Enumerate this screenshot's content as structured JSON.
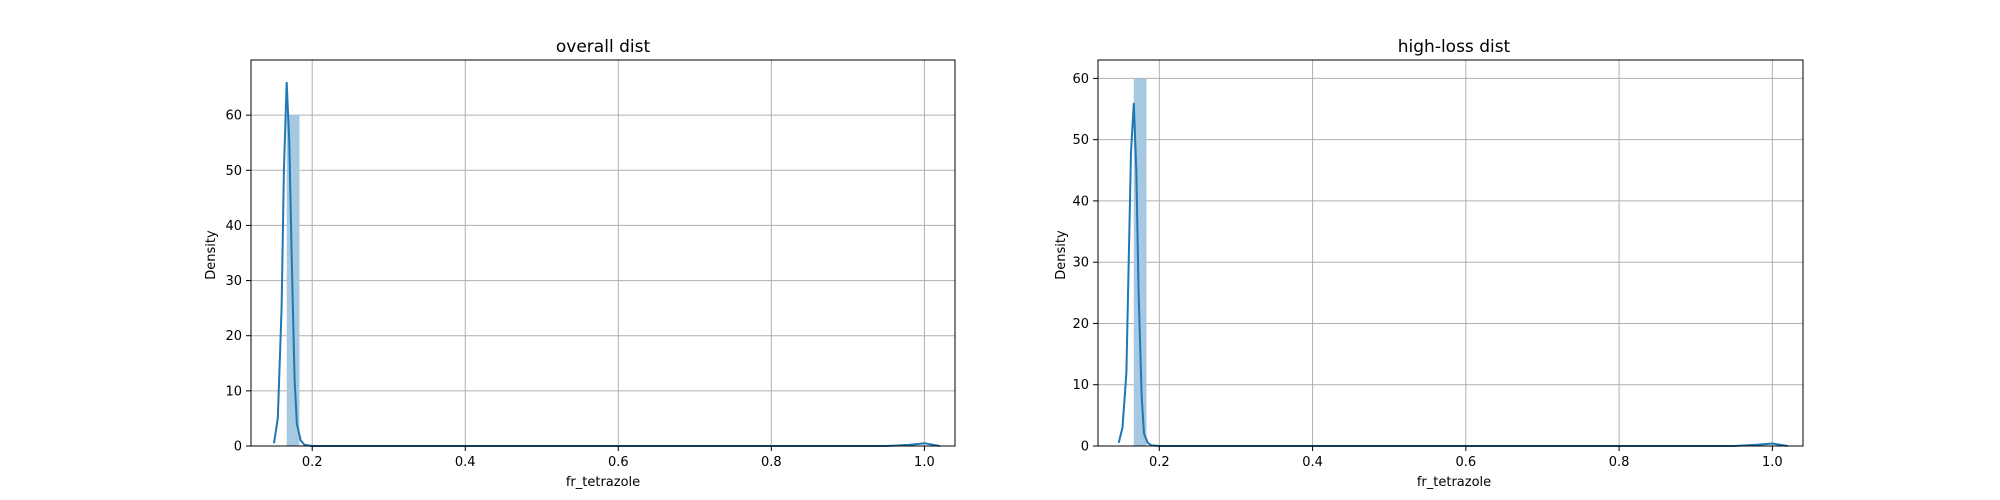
{
  "chart_data": [
    {
      "type": "histogram+kde",
      "title": "overall dist",
      "xlabel": "fr_tetrazole",
      "ylabel": "Density",
      "xlim": [
        0.12,
        1.04
      ],
      "ylim": [
        0,
        70
      ],
      "xticks": [
        0.2,
        0.4,
        0.6,
        0.8,
        1.0
      ],
      "xtick_labels": [
        "0.2",
        "0.4",
        "0.6",
        "0.8",
        "1.0"
      ],
      "yticks": [
        0,
        10,
        20,
        30,
        40,
        50,
        60
      ],
      "ytick_labels": [
        "0",
        "10",
        "20",
        "30",
        "40",
        "50",
        "60"
      ],
      "grid": true,
      "bars": [
        {
          "x0": 0.1667,
          "x1": 0.1833,
          "density": 60
        },
        {
          "x0": 0.9833,
          "x1": 1.0,
          "density": 0.1
        }
      ],
      "kde": {
        "x": [
          0.15,
          0.155,
          0.16,
          0.163,
          0.1667,
          0.17,
          0.173,
          0.177,
          0.18,
          0.185,
          0.19,
          0.2,
          0.4,
          0.6,
          0.8,
          0.95,
          0.98,
          1.0,
          1.02
        ],
        "y": [
          0.5,
          5,
          25,
          50,
          66,
          55,
          35,
          12,
          4,
          1,
          0.2,
          0,
          0,
          0,
          0,
          0,
          0.2,
          0.5,
          0
        ]
      }
    },
    {
      "type": "histogram+kde",
      "title": "high-loss dist",
      "xlabel": "fr_tetrazole",
      "ylabel": "Density",
      "xlim": [
        0.12,
        1.04
      ],
      "ylim": [
        0,
        63
      ],
      "xticks": [
        0.2,
        0.4,
        0.6,
        0.8,
        1.0
      ],
      "xtick_labels": [
        "0.2",
        "0.4",
        "0.6",
        "0.8",
        "1.0"
      ],
      "yticks": [
        0,
        10,
        20,
        30,
        40,
        50,
        60
      ],
      "ytick_labels": [
        "0",
        "10",
        "20",
        "30",
        "40",
        "50",
        "60"
      ],
      "grid": true,
      "bars": [
        {
          "x0": 0.1667,
          "x1": 0.1833,
          "density": 60
        },
        {
          "x0": 0.9833,
          "x1": 1.0,
          "density": 0.1
        }
      ],
      "kde": {
        "x": [
          0.147,
          0.152,
          0.157,
          0.16,
          0.163,
          0.1667,
          0.17,
          0.173,
          0.177,
          0.18,
          0.185,
          0.19,
          0.2,
          0.4,
          0.6,
          0.8,
          0.95,
          0.98,
          1.0,
          1.02
        ],
        "y": [
          0.5,
          3,
          12,
          30,
          48,
          56,
          45,
          25,
          8,
          2,
          0.5,
          0.1,
          0,
          0,
          0,
          0,
          0,
          0.2,
          0.4,
          0
        ]
      }
    }
  ],
  "colors": {
    "bar_fill": "#a6c8e0",
    "kde_line": "#1f77b4",
    "grid": "#b0b0b0",
    "axis": "#000000"
  }
}
